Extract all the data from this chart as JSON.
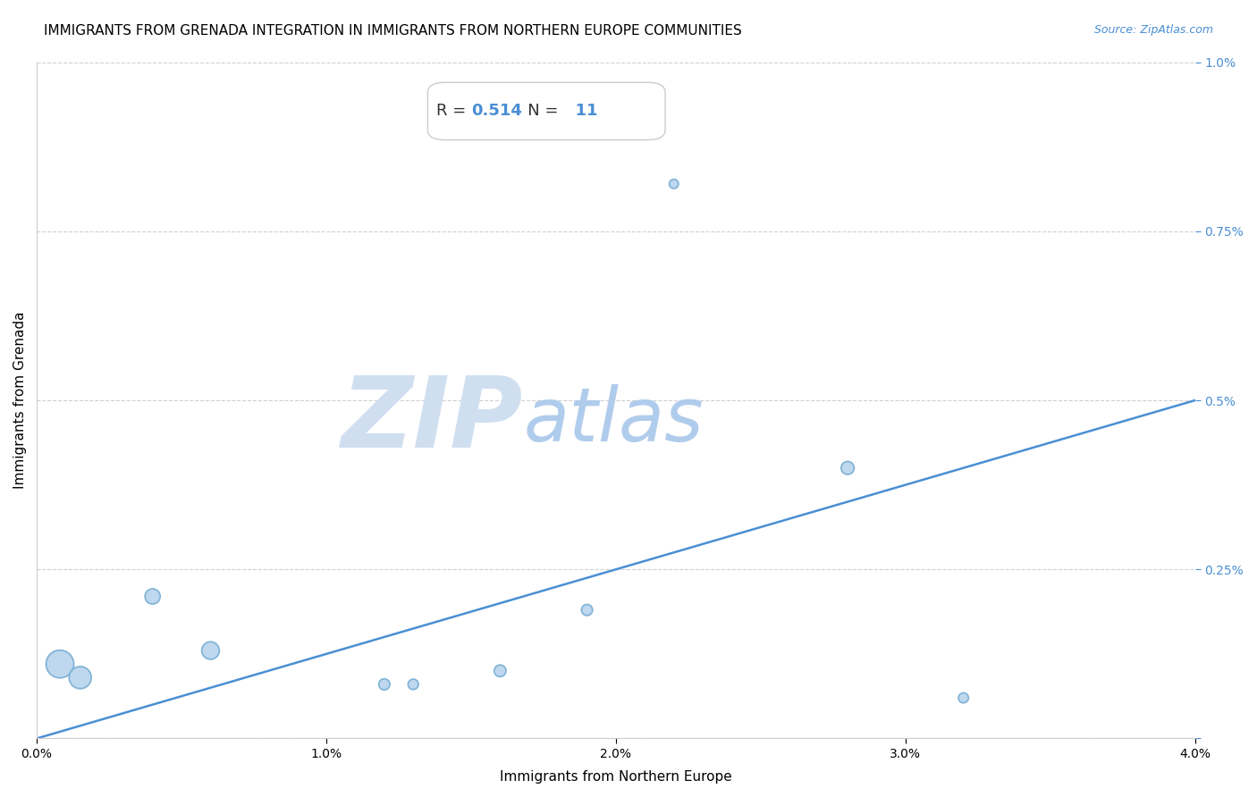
{
  "title": "IMMIGRANTS FROM GRENADA INTEGRATION IN IMMIGRANTS FROM NORTHERN EUROPE COMMUNITIES",
  "source": "Source: ZipAtlas.com",
  "xlabel": "Immigrants from Northern Europe",
  "ylabel": "Immigrants from Grenada",
  "R": 0.514,
  "N": 11,
  "xlim": [
    0.0,
    0.04
  ],
  "ylim": [
    0.0,
    0.01
  ],
  "xticks": [
    0.0,
    0.01,
    0.02,
    0.03,
    0.04
  ],
  "xtick_labels": [
    "0.0%",
    "1.0%",
    "2.0%",
    "3.0%",
    "4.0%"
  ],
  "yticks": [
    0.0,
    0.0025,
    0.005,
    0.0075,
    0.01
  ],
  "ytick_labels": [
    "",
    "0.25%",
    "0.5%",
    "0.75%",
    "1.0%"
  ],
  "scatter_x": [
    0.0008,
    0.0015,
    0.004,
    0.006,
    0.012,
    0.013,
    0.016,
    0.019,
    0.022,
    0.028,
    0.032
  ],
  "scatter_y": [
    0.0011,
    0.0009,
    0.0021,
    0.0013,
    0.0008,
    0.0008,
    0.001,
    0.0019,
    0.0082,
    0.004,
    0.0006
  ],
  "scatter_sizes": [
    500,
    320,
    150,
    200,
    80,
    70,
    90,
    80,
    55,
    110,
    65
  ],
  "scatter_color": "#b8d4ee",
  "scatter_edge_color": "#7aafd4",
  "regression_color": "#4a8fd4",
  "regression_x0": 0.0,
  "regression_x1": 0.04,
  "regression_y0": 0.0,
  "regression_y1": 0.005,
  "title_fontsize": 11,
  "axis_label_fontsize": 11,
  "tick_fontsize": 10,
  "annotation_fontsize": 13,
  "watermark_zip": "ZIP",
  "watermark_atlas": "atlas",
  "watermark_color_zip": "#d0dff0",
  "watermark_color_atlas": "#b0ccec",
  "background_color": "#ffffff",
  "grid_color": "#d0d0d0",
  "tick_color": "#4a8fd4",
  "source_color": "#4a8fd4"
}
